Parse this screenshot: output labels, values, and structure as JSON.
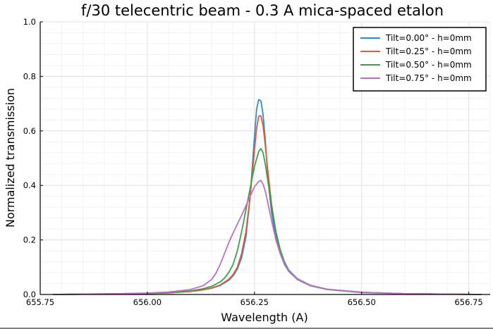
{
  "chart_data": {
    "type": "line",
    "title": "f/30 telecentric beam - 0.3 A mica-spaced etalon",
    "xlabel": "Wavelength (A)",
    "ylabel": "Normalized transmission",
    "xlim": [
      655.75,
      656.8
    ],
    "ylim": [
      0.0,
      1.0
    ],
    "xticks": [
      "655.75",
      "656.00",
      "656.25",
      "656.50",
      "656.75"
    ],
    "yticks": [
      "0.0",
      "0.2",
      "0.4",
      "0.6",
      "0.8",
      "1.0"
    ],
    "grid": true,
    "legend_position": "top-right",
    "series": [
      {
        "name": "Tilt=0.00° - h=0mm",
        "color": "#2f8bd0",
        "x": [
          655.78,
          655.9,
          656.0,
          656.05,
          656.1,
          656.13,
          656.15,
          656.17,
          656.19,
          656.2,
          656.21,
          656.22,
          656.23,
          656.24,
          656.245,
          656.25,
          656.255,
          656.26,
          656.265,
          656.27,
          656.275,
          656.28,
          656.285,
          656.29,
          656.3,
          656.31,
          656.32,
          656.33,
          656.35,
          656.38,
          656.42,
          656.5,
          656.6,
          656.78
        ],
        "values": [
          0.0,
          0.002,
          0.004,
          0.006,
          0.011,
          0.017,
          0.023,
          0.033,
          0.052,
          0.068,
          0.093,
          0.135,
          0.21,
          0.36,
          0.47,
          0.58,
          0.68,
          0.715,
          0.71,
          0.66,
          0.57,
          0.46,
          0.37,
          0.3,
          0.21,
          0.15,
          0.11,
          0.085,
          0.055,
          0.032,
          0.018,
          0.007,
          0.003,
          0.0
        ]
      },
      {
        "name": "Tilt=0.25° - h=0mm",
        "color": "#e0593a",
        "x": [
          655.78,
          655.9,
          656.0,
          656.05,
          656.1,
          656.13,
          656.15,
          656.17,
          656.19,
          656.2,
          656.21,
          656.22,
          656.23,
          656.24,
          656.25,
          656.255,
          656.26,
          656.265,
          656.27,
          656.275,
          656.28,
          656.29,
          656.3,
          656.31,
          656.32,
          656.33,
          656.35,
          656.38,
          656.42,
          656.5,
          656.6,
          656.78
        ],
        "values": [
          0.0,
          0.002,
          0.004,
          0.006,
          0.011,
          0.017,
          0.024,
          0.035,
          0.056,
          0.073,
          0.1,
          0.15,
          0.23,
          0.36,
          0.53,
          0.61,
          0.655,
          0.655,
          0.62,
          0.55,
          0.47,
          0.33,
          0.23,
          0.16,
          0.115,
          0.088,
          0.057,
          0.033,
          0.019,
          0.008,
          0.003,
          0.0
        ]
      },
      {
        "name": "Tilt=0.50° - h=0mm",
        "color": "#3ba04a",
        "x": [
          655.78,
          655.9,
          656.0,
          656.05,
          656.1,
          656.13,
          656.15,
          656.17,
          656.18,
          656.19,
          656.2,
          656.21,
          656.22,
          656.23,
          656.24,
          656.25,
          656.26,
          656.265,
          656.27,
          656.275,
          656.28,
          656.29,
          656.3,
          656.31,
          656.32,
          656.33,
          656.35,
          656.38,
          656.42,
          656.5,
          656.6,
          656.78
        ],
        "values": [
          0.0,
          0.002,
          0.004,
          0.007,
          0.013,
          0.021,
          0.03,
          0.046,
          0.06,
          0.081,
          0.11,
          0.16,
          0.23,
          0.31,
          0.39,
          0.47,
          0.525,
          0.535,
          0.52,
          0.48,
          0.43,
          0.32,
          0.23,
          0.165,
          0.12,
          0.09,
          0.058,
          0.034,
          0.019,
          0.008,
          0.003,
          0.0
        ]
      },
      {
        "name": "Tilt=0.75° - h=0mm",
        "color": "#bf6ec5",
        "x": [
          655.78,
          655.9,
          656.0,
          656.05,
          656.1,
          656.13,
          656.15,
          656.16,
          656.17,
          656.18,
          656.19,
          656.2,
          656.21,
          656.22,
          656.23,
          656.24,
          656.25,
          656.26,
          656.265,
          656.27,
          656.275,
          656.28,
          656.29,
          656.3,
          656.31,
          656.32,
          656.33,
          656.35,
          656.38,
          656.42,
          656.5,
          656.6,
          656.78
        ],
        "values": [
          0.0,
          0.002,
          0.005,
          0.009,
          0.018,
          0.032,
          0.055,
          0.078,
          0.11,
          0.15,
          0.19,
          0.225,
          0.258,
          0.29,
          0.325,
          0.36,
          0.395,
          0.415,
          0.418,
          0.405,
          0.38,
          0.345,
          0.27,
          0.2,
          0.15,
          0.115,
          0.088,
          0.057,
          0.033,
          0.019,
          0.008,
          0.003,
          0.0
        ]
      }
    ]
  }
}
